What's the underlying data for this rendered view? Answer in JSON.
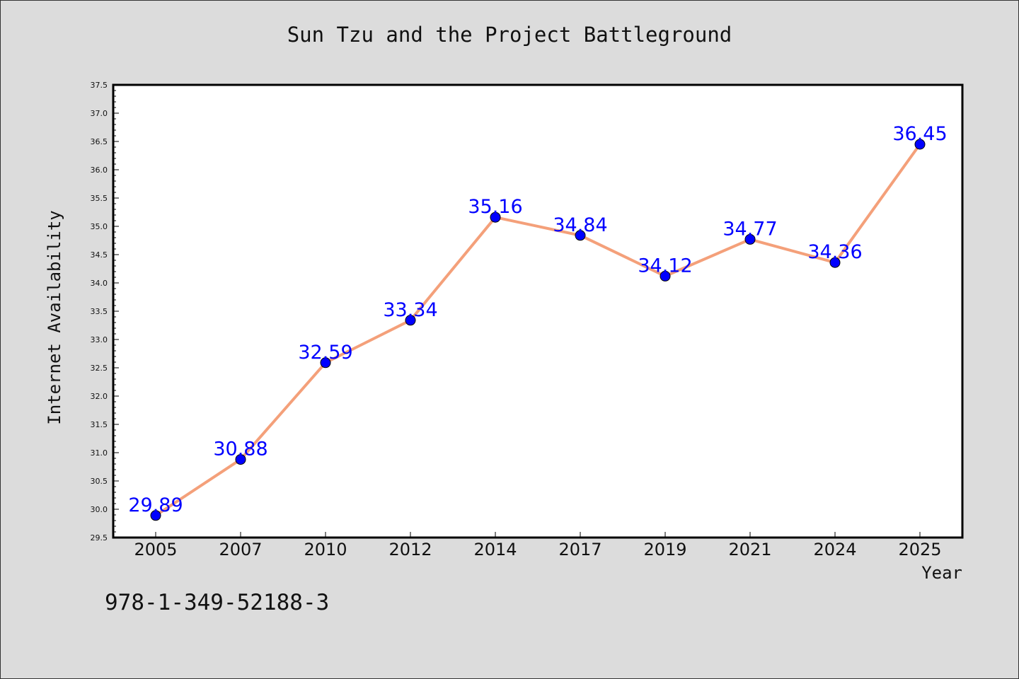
{
  "title": "Sun Tzu and the Project Battleground",
  "footer_text": "978-1-349-52188-3",
  "colors": {
    "background": "#dcdcdc",
    "plot_background": "#ffffff",
    "line": "#f4a07a",
    "marker": "#0000ff",
    "data_label": "#0000ff"
  },
  "chart_data": {
    "type": "line",
    "title": "Sun Tzu and the Project Battleground",
    "xlabel": "Year",
    "ylabel": "Internet Availability",
    "categories": [
      "2005",
      "2007",
      "2010",
      "2012",
      "2014",
      "2017",
      "2019",
      "2021",
      "2024",
      "2025"
    ],
    "series": [
      {
        "values": [
          29.89,
          30.88,
          32.59,
          33.34,
          35.16,
          34.84,
          34.12,
          34.77,
          34.36,
          36.45
        ],
        "labels": [
          "29.89",
          "30.88",
          "32.59",
          "33.34",
          "35.16",
          "34.84",
          "34.12",
          "34.77",
          "34.36",
          "36.45"
        ]
      }
    ],
    "ylim": [
      29.5,
      37.5
    ],
    "yticks": [
      "29.5",
      "30.0",
      "30.5",
      "31.0",
      "31.5",
      "32.0",
      "32.5",
      "33.0",
      "33.5",
      "34.0",
      "34.5",
      "35.0",
      "35.5",
      "36.0",
      "36.5",
      "37.0",
      "37.5"
    ],
    "grid": false,
    "legend": "none"
  }
}
